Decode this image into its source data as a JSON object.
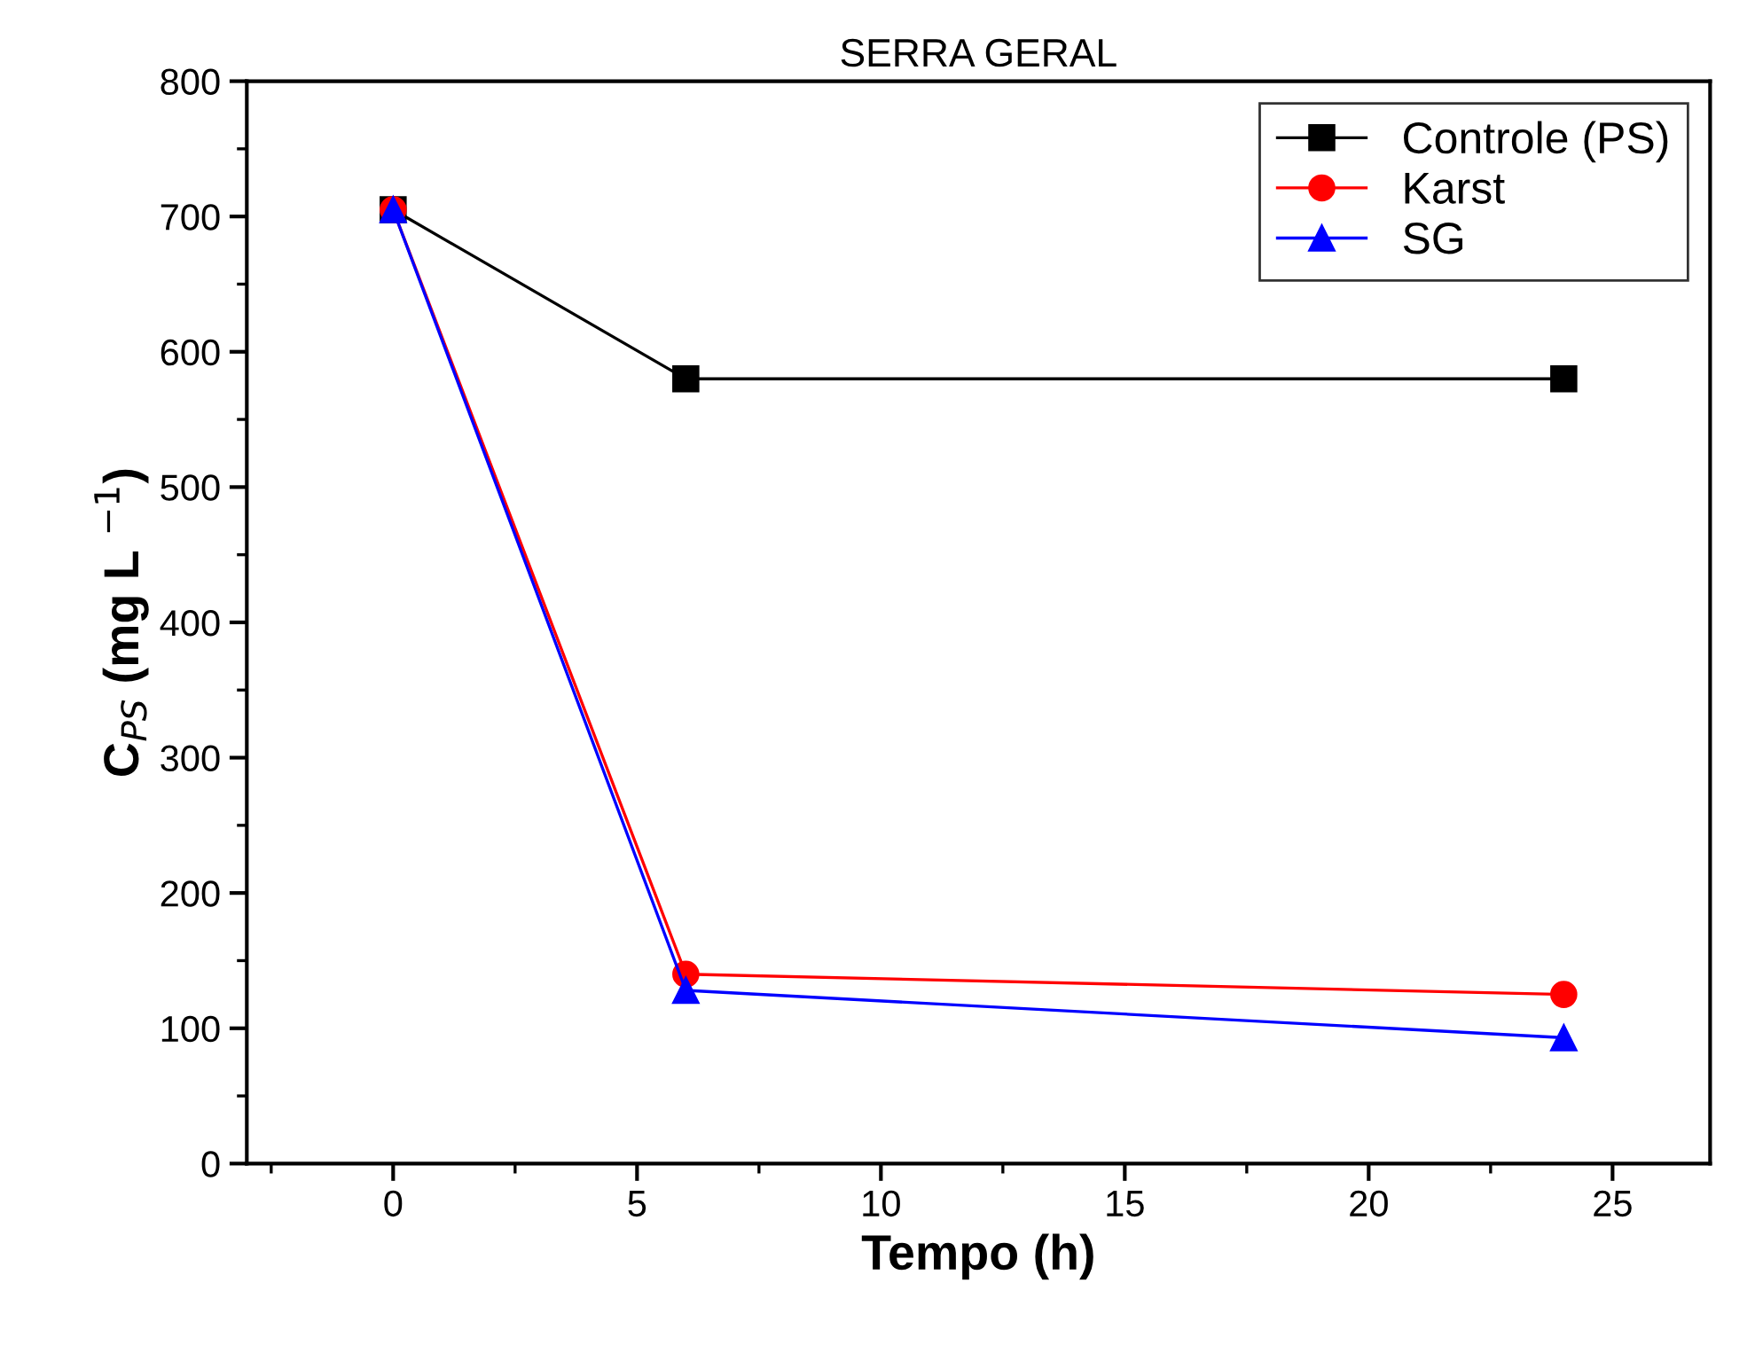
{
  "chart_data": {
    "type": "line",
    "title": "SERRA GERAL",
    "xlabel": "Tempo (h)",
    "ylabel": "C$_{PS}$ (mg L $^{−1}$)",
    "x": [
      0,
      6,
      24
    ],
    "xlim": [
      -3,
      27
    ],
    "xticks": [
      0,
      5,
      10,
      15,
      20,
      25
    ],
    "ylim": [
      0,
      800
    ],
    "yticks": [
      0,
      100,
      200,
      300,
      400,
      500,
      600,
      700,
      800
    ],
    "grid": false,
    "legend": "top right",
    "series": [
      {
        "name": "Controle (PS)",
        "color": "#000000",
        "marker": "square",
        "values": [
          705,
          580,
          580
        ]
      },
      {
        "name": "Karst",
        "color": "#ff0000",
        "marker": "circle",
        "values": [
          705,
          140,
          125
        ]
      },
      {
        "name": "SG",
        "color": "#0000ff",
        "marker": "triangle",
        "values": [
          705,
          128,
          93
        ]
      }
    ]
  }
}
